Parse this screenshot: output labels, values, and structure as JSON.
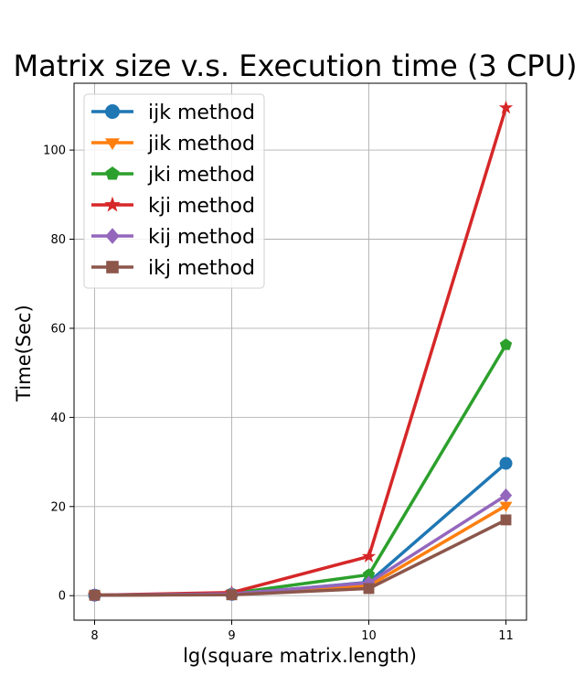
{
  "chart_data": {
    "type": "line",
    "title": "Matrix size v.s. Execution time (3 CPU)",
    "xlabel": "lg(square matrix.length)",
    "ylabel": "Time(Sec)",
    "x": [
      8,
      9,
      10,
      11
    ],
    "x_ticks": [
      "8",
      "9",
      "10",
      "11"
    ],
    "y_ticks": [
      "0",
      "20",
      "40",
      "60",
      "80",
      "100"
    ],
    "xlim": [
      7.85,
      11.15
    ],
    "ylim": [
      -5.5,
      115
    ],
    "grid": true,
    "legend_position": "top-left",
    "series": [
      {
        "name": "ijk method",
        "color": "#1f77b4",
        "marker": "circle",
        "values": [
          0.1,
          0.3,
          3.0,
          29.7
        ]
      },
      {
        "name": "jik method",
        "color": "#ff7f0e",
        "marker": "triangle-down",
        "values": [
          0.1,
          0.3,
          2.2,
          20.2
        ]
      },
      {
        "name": "jki method",
        "color": "#2ca02c",
        "marker": "pentagon",
        "values": [
          0.1,
          0.5,
          4.7,
          56.3
        ]
      },
      {
        "name": "kji method",
        "color": "#d62728",
        "marker": "star",
        "values": [
          0.1,
          0.7,
          8.8,
          109.5
        ]
      },
      {
        "name": "kij method",
        "color": "#9467bd",
        "marker": "diamond",
        "values": [
          0.1,
          0.4,
          2.9,
          22.5
        ]
      },
      {
        "name": "ikj method",
        "color": "#8c564b",
        "marker": "square",
        "values": [
          0.1,
          0.2,
          1.6,
          17.0
        ]
      }
    ]
  }
}
